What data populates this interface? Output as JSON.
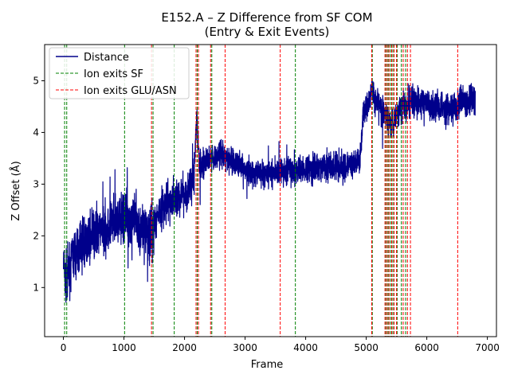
{
  "chart_data": {
    "type": "line",
    "title": "E152.A – Z Difference from SF COM\n(Entry & Exit Events)",
    "title_lines": [
      "E152.A – Z Difference from SF COM",
      "(Entry & Exit Events)"
    ],
    "xlabel": "Frame",
    "ylabel": "Z Offset (Å)",
    "xlim": [
      -310,
      7150
    ],
    "ylim": [
      0.05,
      5.7
    ],
    "xticks": [
      0,
      1000,
      2000,
      3000,
      4000,
      5000,
      6000,
      7000
    ],
    "yticks": [
      1,
      2,
      3,
      4,
      5
    ],
    "grid": false,
    "legend_position": "upper-left",
    "series": [
      {
        "name": "Distance",
        "color": "#00008b",
        "style": "solid",
        "frames": [
          0,
          6800
        ],
        "trend_points": [
          [
            0,
            1.5
          ],
          [
            30,
            1.1
          ],
          [
            80,
            1.3
          ],
          [
            150,
            1.55
          ],
          [
            300,
            1.8
          ],
          [
            500,
            2.0
          ],
          [
            700,
            2.15
          ],
          [
            900,
            2.25
          ],
          [
            1000,
            2.35
          ],
          [
            1100,
            2.35
          ],
          [
            1200,
            2.3
          ],
          [
            1300,
            2.1
          ],
          [
            1400,
            2.05
          ],
          [
            1470,
            2.1
          ],
          [
            1550,
            2.4
          ],
          [
            1700,
            2.6
          ],
          [
            1900,
            2.75
          ],
          [
            2050,
            2.85
          ],
          [
            2150,
            3.1
          ],
          [
            2200,
            4.3
          ],
          [
            2250,
            3.3
          ],
          [
            2400,
            3.5
          ],
          [
            2600,
            3.55
          ],
          [
            2800,
            3.45
          ],
          [
            3000,
            3.3
          ],
          [
            3200,
            3.2
          ],
          [
            3500,
            3.25
          ],
          [
            3700,
            3.25
          ],
          [
            4000,
            3.3
          ],
          [
            4300,
            3.35
          ],
          [
            4600,
            3.35
          ],
          [
            4850,
            3.4
          ],
          [
            4900,
            3.45
          ],
          [
            4950,
            4.4
          ],
          [
            5100,
            4.75
          ],
          [
            5300,
            4.35
          ],
          [
            5400,
            4.2
          ],
          [
            5500,
            4.35
          ],
          [
            5600,
            4.55
          ],
          [
            5800,
            4.6
          ],
          [
            6000,
            4.55
          ],
          [
            6200,
            4.5
          ],
          [
            6400,
            4.45
          ],
          [
            6500,
            4.45
          ],
          [
            6550,
            4.65
          ],
          [
            6700,
            4.6
          ],
          [
            6800,
            4.65
          ]
        ],
        "noise_bands": [
          [
            0,
            1500,
            0.75
          ],
          [
            1500,
            2150,
            0.55
          ],
          [
            2150,
            4950,
            0.4
          ],
          [
            4950,
            6800,
            0.45
          ]
        ]
      },
      {
        "name": "Ion exits SF",
        "color": "#008000",
        "style": "dashed",
        "x": [
          20,
          55,
          1010,
          1480,
          1830,
          2210,
          2450,
          3830,
          5100,
          5320,
          5360,
          5400,
          5440,
          5510,
          5580,
          5650
        ]
      },
      {
        "name": "Ion exits GLU/ASN",
        "color": "#ff0000",
        "style": "dashed",
        "x": [
          1455,
          2190,
          2230,
          2430,
          2670,
          3580,
          5090,
          5310,
          5340,
          5375,
          5420,
          5460,
          5500,
          5610,
          5680,
          5730,
          6510
        ]
      }
    ]
  }
}
